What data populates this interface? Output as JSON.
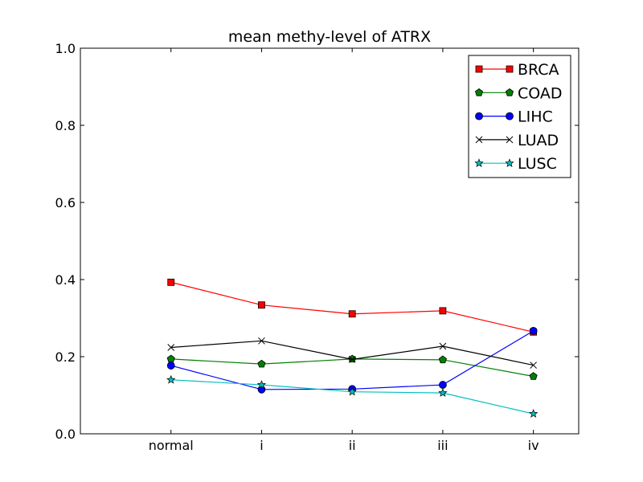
{
  "chart_data": {
    "type": "line",
    "title": "mean methy-level of ATRX",
    "xlabel": "",
    "ylabel": "",
    "categories": [
      "normal",
      "i",
      "ii",
      "iii",
      "iv"
    ],
    "xlim": [
      -1,
      4.5
    ],
    "ylim": [
      0.0,
      1.0
    ],
    "yticks": [
      0.0,
      0.2,
      0.4,
      0.6,
      0.8,
      1.0
    ],
    "ytick_labels": [
      "0.0",
      "0.2",
      "0.4",
      "0.6",
      "0.8",
      "1.0"
    ],
    "grid": false,
    "legend_position": "top-right",
    "series": [
      {
        "name": "BRCA",
        "color": "#ff0000",
        "marker": "square",
        "values": [
          0.393,
          0.334,
          0.311,
          0.319,
          0.264
        ]
      },
      {
        "name": "COAD",
        "color": "#008000",
        "marker": "pentagon",
        "values": [
          0.194,
          0.181,
          0.194,
          0.192,
          0.149
        ]
      },
      {
        "name": "LIHC",
        "color": "#0000ff",
        "marker": "circle",
        "values": [
          0.177,
          0.115,
          0.116,
          0.127,
          0.267
        ]
      },
      {
        "name": "LUAD",
        "color": "#000000",
        "marker": "x",
        "values": [
          0.224,
          0.241,
          0.193,
          0.227,
          0.178
        ]
      },
      {
        "name": "LUSC",
        "color": "#00bfbf",
        "marker": "star",
        "values": [
          0.14,
          0.127,
          0.109,
          0.106,
          0.052
        ]
      }
    ]
  }
}
